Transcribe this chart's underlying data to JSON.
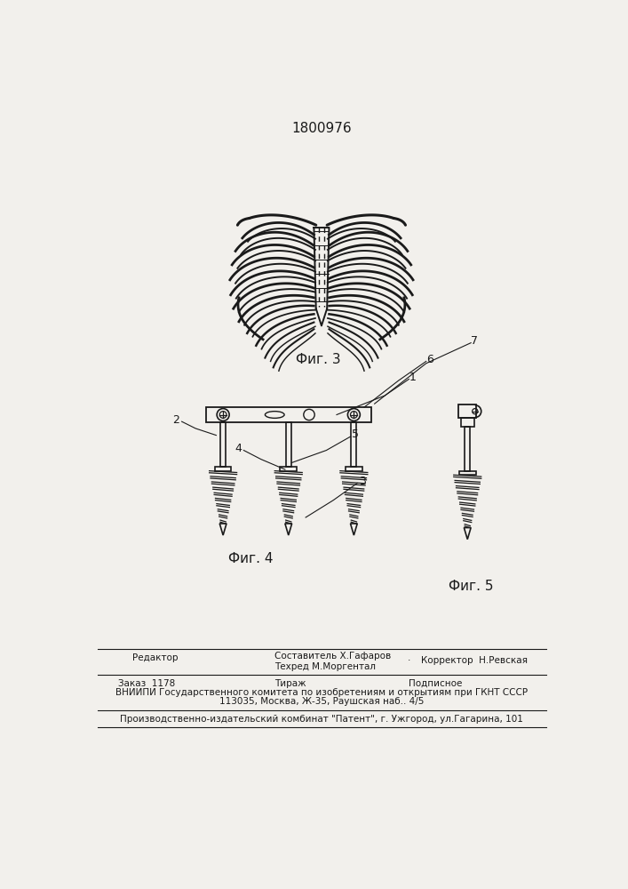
{
  "title": "1800976",
  "bg_color": "#f2f0ec",
  "fig3_label": "Фиг. 3",
  "fig4_label": "Фиг. 4",
  "fig5_label": "Фиг. 5",
  "footer_editor": "Редактор",
  "footer_compiler": "Составитель Х.Гафаров",
  "footer_techred": "Техред М.Моргентал",
  "footer_corrector": "Корректор  Н.Ревская",
  "footer_order": "Заказ  1178",
  "footer_tiraj": "Тираж",
  "footer_podpisnoe": "Подписное",
  "footer_vnipi": "ВНИИПИ Государственного комитета по изобретениям и открытиям при ГКНТ СССР",
  "footer_address": "113035, Москва, Ж-35, Раушская наб.. 4/5",
  "footer_publisher": "Производственно-издательский комбинат \"Патент\", г. Ужгород, ул.Гагарина, 101",
  "lc": "#1a1a1a",
  "tc": "#1a1a1a"
}
